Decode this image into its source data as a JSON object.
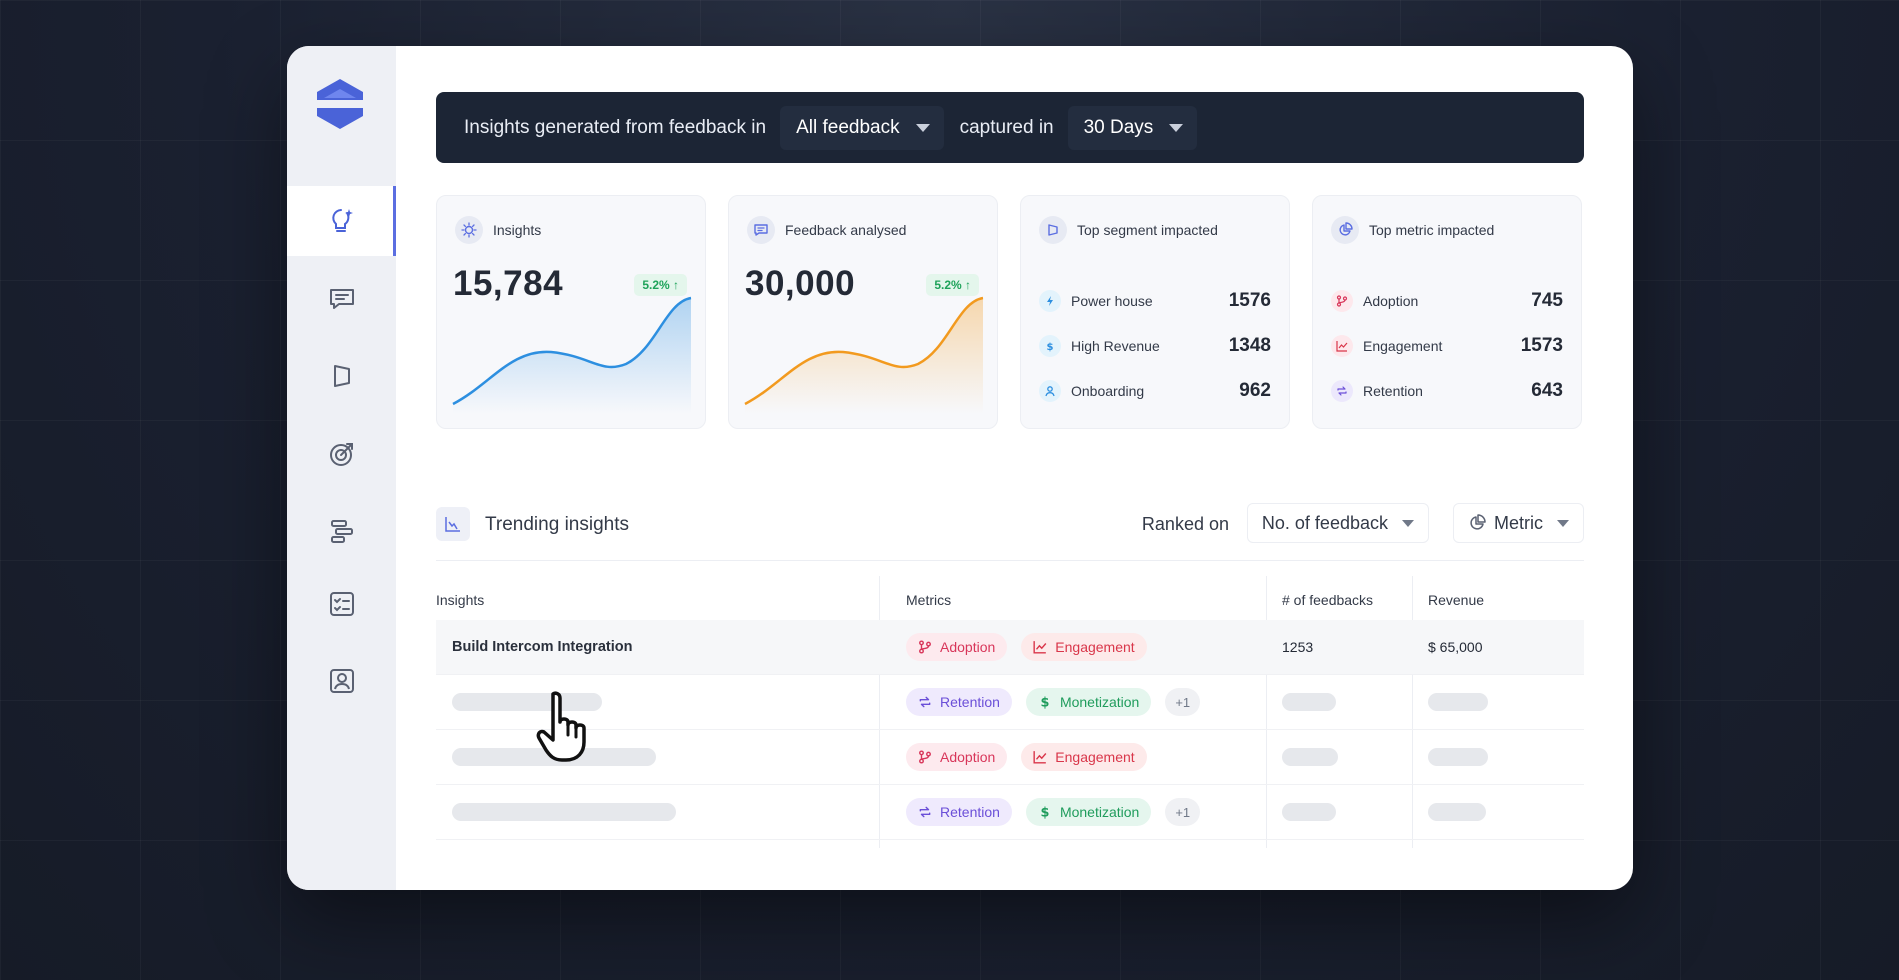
{
  "filter_bar": {
    "prefix": "Insights generated from feedback in",
    "source_value": "All feedback",
    "middle": "captured in",
    "range_value": "30 Days"
  },
  "cards": {
    "insights": {
      "label": "Insights",
      "value": "15,784",
      "delta": "5.2% ↑",
      "color": "#2d8fe0"
    },
    "feedback": {
      "label": "Feedback analysed",
      "value": "30,000",
      "delta": "5.2% ↑",
      "color": "#f29a1f"
    },
    "segment": {
      "label": "Top segment impacted",
      "items": [
        {
          "label": "Power house",
          "value": "1576",
          "icon": "bolt-icon"
        },
        {
          "label": "High Revenue",
          "value": "1348",
          "icon": "dollar-icon"
        },
        {
          "label": "Onboarding",
          "value": "962",
          "icon": "user-icon"
        }
      ]
    },
    "metric": {
      "label": "Top metric impacted",
      "items": [
        {
          "label": "Adoption",
          "value": "745",
          "icon": "branch-icon"
        },
        {
          "label": "Engagement",
          "value": "1573",
          "icon": "trend-icon"
        },
        {
          "label": "Retention",
          "value": "643",
          "icon": "repeat-icon"
        }
      ]
    }
  },
  "trending": {
    "title": "Trending insights",
    "ranked_on_label": "Ranked on",
    "ranked_value": "No. of feedback",
    "metric_value": "Metric"
  },
  "table": {
    "headers": {
      "insights": "Insights",
      "metrics": "Metrics",
      "feedbacks": "#  of feedbacks",
      "revenue": "Revenue"
    },
    "rows": [
      {
        "insight": "Build Intercom Integration",
        "tag1": "Adoption",
        "tag2": "Engagement",
        "feedbacks": "1253",
        "revenue": "$ 65,000"
      },
      {
        "tag1": "Retention",
        "tag2": "Monetization",
        "more": "+1"
      },
      {
        "tag1": "Adoption",
        "tag2": "Engagement"
      },
      {
        "tag1": "Retention",
        "tag2": "Monetization",
        "more": "+1"
      }
    ]
  }
}
